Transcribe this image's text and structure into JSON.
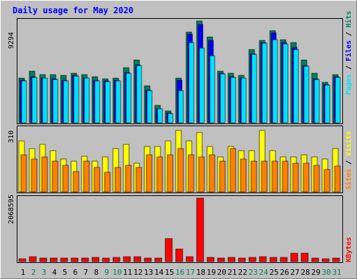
{
  "chart_data": {
    "type": "bar",
    "title": "Daily usage for May 2020",
    "categories": [
      "1",
      "2",
      "3",
      "4",
      "5",
      "6",
      "7",
      "8",
      "9",
      "10",
      "11",
      "12",
      "13",
      "14",
      "15",
      "16",
      "17",
      "18",
      "19",
      "20",
      "21",
      "22",
      "23",
      "24",
      "25",
      "26",
      "27",
      "28",
      "29",
      "30",
      "31"
    ],
    "weekend_categories": [
      "2",
      "3",
      "9",
      "10",
      "16",
      "17",
      "23",
      "24",
      "30",
      "31"
    ],
    "panels": [
      {
        "id": "hits",
        "ymax_label": "9294",
        "ymax": 9294,
        "legend": [
          "Pages",
          "Files",
          "Hits"
        ],
        "series": [
          {
            "name": "Hits",
            "color": "#00805c",
            "values": [
              4100,
              4700,
              4400,
              4400,
              4300,
              4500,
              4400,
              4200,
              4000,
              4100,
              5000,
              5700,
              3400,
              1600,
              1100,
              4100,
              8300,
              9294,
              7800,
              4700,
              4500,
              4300,
              6700,
              7500,
              8400,
              7600,
              7300,
              5700,
              4500,
              3700,
              4400
            ]
          },
          {
            "name": "Files",
            "color": "#0000ff",
            "values": [
              3900,
              4200,
              4100,
              4000,
              3900,
              4300,
              4100,
              3900,
              3800,
              3900,
              4600,
              5300,
              3000,
              1300,
              900,
              3900,
              8100,
              9000,
              7500,
              4500,
              4200,
              4100,
              6300,
              7300,
              8200,
              7300,
              6900,
              5200,
              4000,
              3500,
              4200
            ]
          },
          {
            "name": "Pages",
            "color": "#00e1ff",
            "values": [
              3850,
              4150,
              4050,
              3950,
              3850,
              4250,
              4050,
              3850,
              3750,
              3850,
              4550,
              5250,
              2950,
              1250,
              850,
              2900,
              7300,
              6800,
              6100,
              4450,
              4150,
              4050,
              6250,
              7250,
              7600,
              7200,
              6700,
              5150,
              3950,
              3450,
              4150
            ]
          }
        ]
      },
      {
        "id": "visits",
        "ymax_label": "310",
        "ymax": 310,
        "legend": [
          "Sites",
          "Visits"
        ],
        "series": [
          {
            "name": "Visits",
            "color": "#ffff00",
            "values": [
              250,
              210,
              230,
              200,
              160,
              150,
              175,
              150,
              170,
              210,
              230,
              140,
              220,
              220,
              250,
              300,
              250,
              290,
              220,
              170,
              220,
              200,
              200,
              300,
              200,
              170,
              170,
              180,
              170,
              160,
              210
            ]
          },
          {
            "name": "Sites",
            "color": "#ff8000",
            "values": [
              180,
              160,
              170,
              150,
              130,
              100,
              150,
              120,
              95,
              120,
              130,
              120,
              180,
              170,
              180,
              210,
              180,
              170,
              180,
              150,
              210,
              160,
              150,
              150,
              150,
              150,
              140,
              140,
              130,
              110,
              125
            ]
          }
        ]
      },
      {
        "id": "kbytes",
        "ymax_label": "2068595",
        "ymax": 2068595,
        "legend": [
          "KBytes"
        ],
        "series": [
          {
            "name": "KBytes",
            "color": "#ff0000",
            "values": [
              80000,
              150000,
              110000,
              110000,
              110000,
              110000,
              120000,
              130000,
              120000,
              130000,
              170000,
              160000,
              110000,
              120000,
              750000,
              420000,
              150000,
              2068595,
              130000,
              120000,
              130000,
              120000,
              130000,
              160000,
              130000,
              140000,
              280000,
              280000,
              110000,
              90000,
              110000
            ]
          }
        ]
      }
    ]
  }
}
